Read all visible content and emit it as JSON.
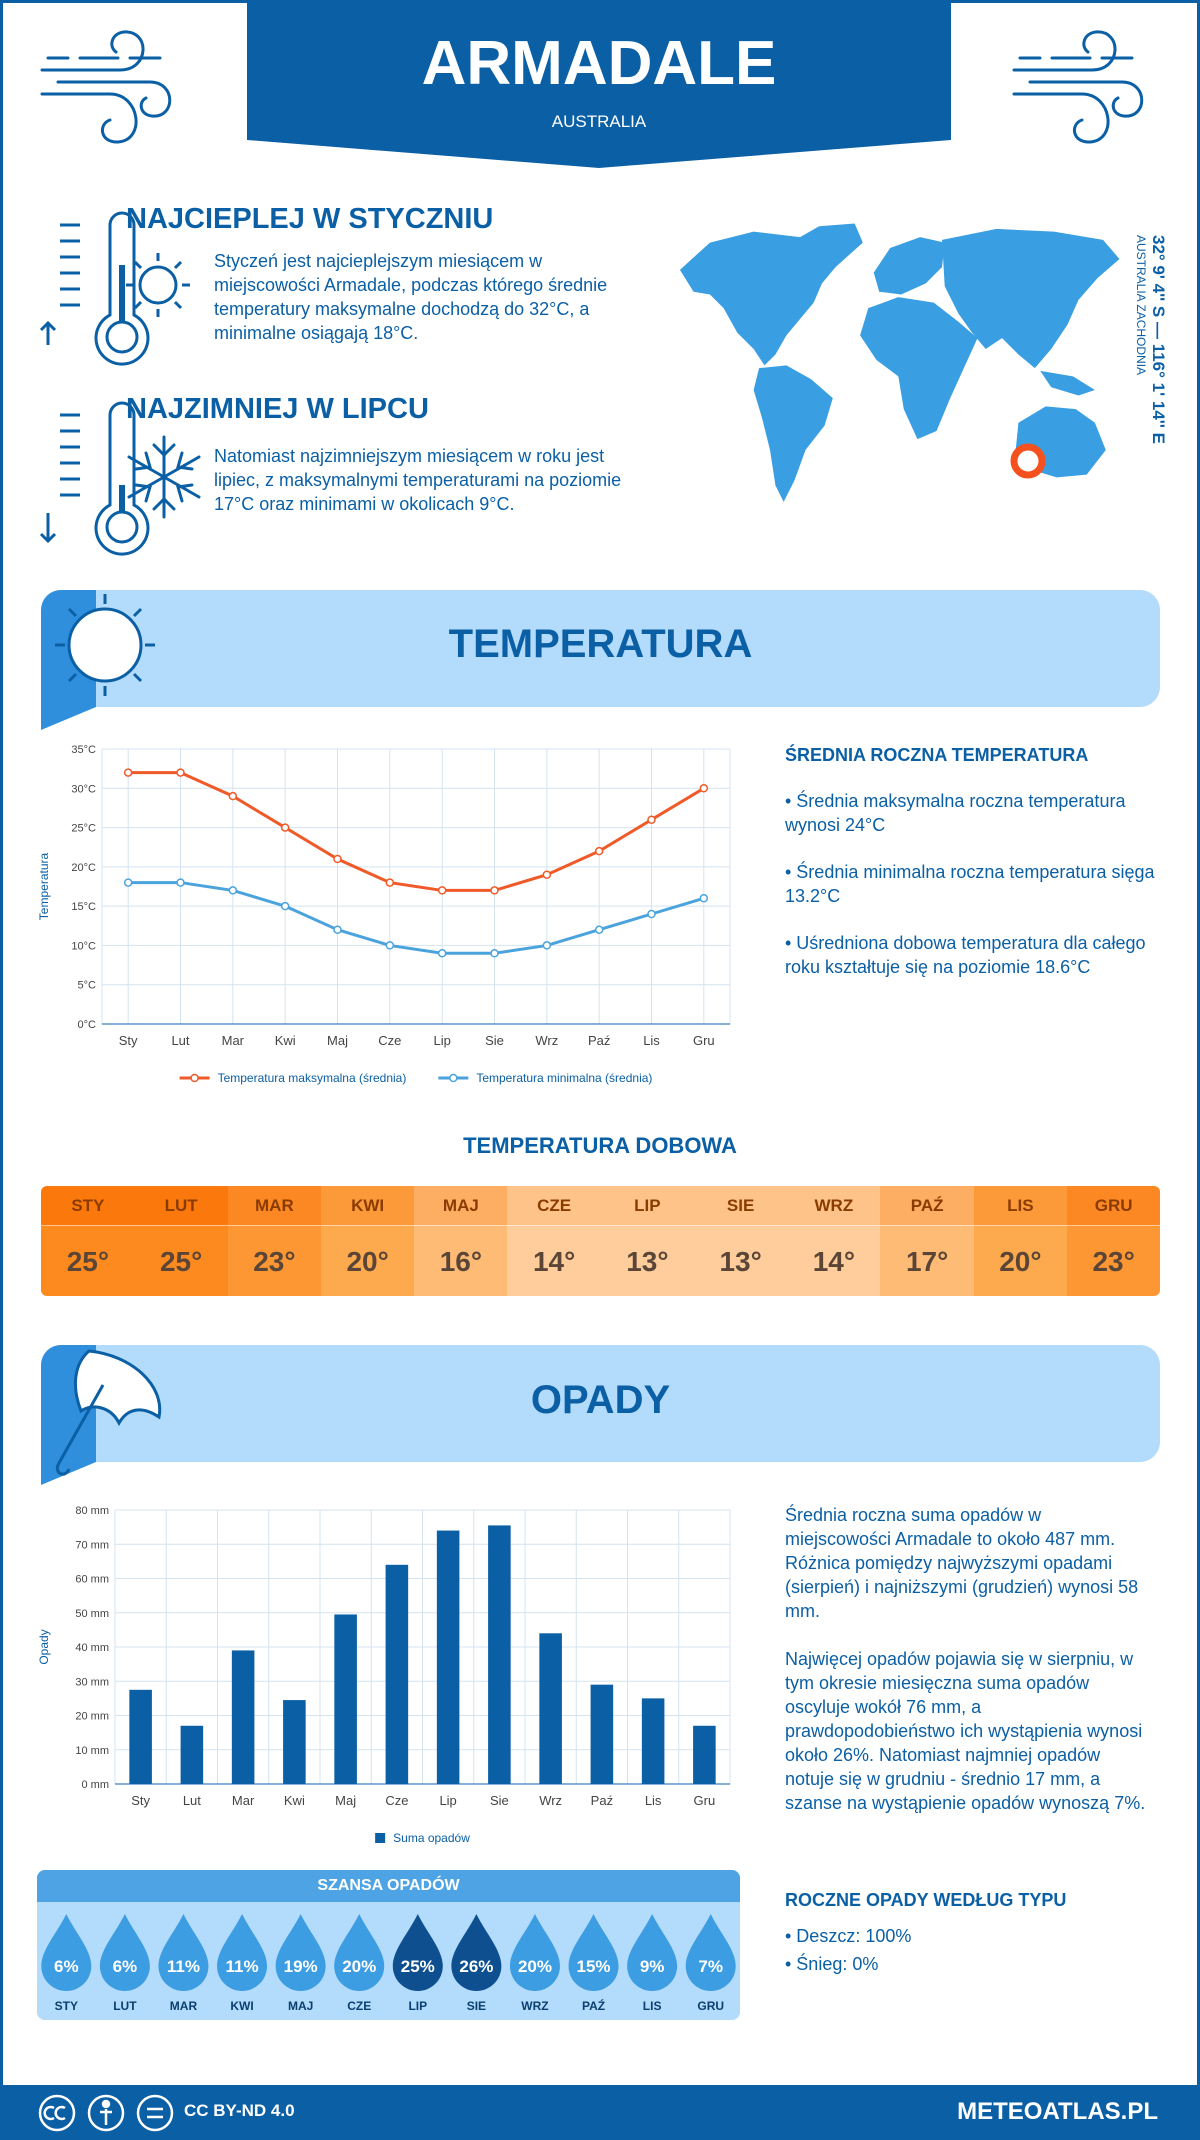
{
  "header": {
    "title": "ARMADALE",
    "subtitle": "AUSTRALIA"
  },
  "hottest": {
    "title": "NAJCIEPLEJ W STYCZNIU",
    "text": "Styczeń jest najcieplejszym miesiącem w miejscowości Armadale, podczas którego średnie temperatury maksymalne dochodzą do 32°C, a minimalne osiągają 18°C."
  },
  "coldest": {
    "title": "NAJZIMNIEJ W LIPCU",
    "text": "Natomiast najzimniejszym miesiącem w roku jest lipiec, z maksymalnymi temperaturami na poziomie 17°C oraz minimami w okolicach 9°C."
  },
  "location": {
    "coords": "32° 9' 4'' S — 116° 1' 14'' E",
    "region": "AUSTRALIA ZACHODNIA"
  },
  "temperature_section": {
    "title": "TEMPERATURA"
  },
  "temperature_summary": {
    "title": "ŚREDNIA ROCZNA TEMPERATURA",
    "items": [
      "• Średnia maksymalna roczna temperatura wynosi 24°C",
      "• Średnia minimalna roczna temperatura sięga 13.2°C",
      "• Uśredniona dobowa temperatura dla całego roku kształtuje się na poziomie 18.6°C"
    ]
  },
  "daily_temperature": {
    "title": "TEMPERATURA DOBOWA",
    "months": [
      "STY",
      "LUT",
      "MAR",
      "KWI",
      "MAJ",
      "CZE",
      "LIP",
      "SIE",
      "WRZ",
      "PAŹ",
      "LIS",
      "GRU"
    ],
    "temps": [
      "25°",
      "25°",
      "23°",
      "20°",
      "16°",
      "14°",
      "13°",
      "13°",
      "14°",
      "17°",
      "20°",
      "23°"
    ],
    "header_colors": [
      "#fb780c",
      "#fb780c",
      "#fb8822",
      "#fc9a3a",
      "#fdae62",
      "#fec389",
      "#fec389",
      "#fec389",
      "#fec389",
      "#fdae62",
      "#fc9a3a",
      "#fb8822"
    ],
    "cell_colors": [
      "#fd8a1e",
      "#fd8a1e",
      "#fd9734",
      "#fda94e",
      "#febb76",
      "#fecd9b",
      "#fecd9b",
      "#fecd9b",
      "#fecd9b",
      "#febb76",
      "#fda94e",
      "#fd9734"
    ]
  },
  "precip_section": {
    "title": "OPADY"
  },
  "precip_summary": {
    "paragraphs": [
      "Średnia roczna suma opadów w miejscowości Armadale to około 487 mm. Różnica pomiędzy najwyższymi opadami (sierpień) i najniższymi (grudzień) wynosi 58 mm.",
      "Najwięcej opadów pojawia się w sierpniu, w tym okresie miesięczna suma opadów oscyluje wokół 76 mm, a prawdopodobieństwo ich wystąpienia wynosi około 26%. Natomiast najmniej opadów notuje się w grudniu - średnio 17 mm, a szanse na wystąpienie opadów wynoszą 7%."
    ]
  },
  "rain_chance": {
    "title": "SZANSA OPADÓW",
    "months": [
      "STY",
      "LUT",
      "MAR",
      "KWI",
      "MAJ",
      "CZE",
      "LIP",
      "SIE",
      "WRZ",
      "PAŹ",
      "LIS",
      "GRU"
    ],
    "labels": [
      "6%",
      "6%",
      "11%",
      "11%",
      "19%",
      "20%",
      "25%",
      "26%",
      "20%",
      "15%",
      "9%",
      "7%"
    ],
    "colors": [
      "#3d9de2",
      "#3d9de2",
      "#3d9de2",
      "#3d9de2",
      "#3d9de2",
      "#3d9de2",
      "#0d4f8f",
      "#0d4f8f",
      "#3d9de2",
      "#3d9de2",
      "#3d9de2",
      "#3d9de2"
    ]
  },
  "precip_types": {
    "title": "ROCZNE OPADY WEDŁUG TYPU",
    "items": [
      "• Deszcz: 100%",
      "• Śnieg: 0%"
    ]
  },
  "footer": {
    "license": "CC BY-ND 4.0",
    "site": "METEOATLAS.PL"
  },
  "chart_data": [
    {
      "type": "line",
      "y_label": "Temperatura",
      "categories": [
        "Sty",
        "Lut",
        "Mar",
        "Kwi",
        "Maj",
        "Cze",
        "Lip",
        "Sie",
        "Wrz",
        "Paź",
        "Lis",
        "Gru"
      ],
      "series": [
        {
          "name": "Temperatura maksymalna (średnia)",
          "color": "#f05a28",
          "values": [
            32,
            32,
            29,
            25,
            21,
            18,
            17,
            17,
            19,
            22,
            26,
            30
          ]
        },
        {
          "name": "Temperatura minimalna (średnia)",
          "color": "#4ba3dd",
          "values": [
            18,
            18,
            17,
            15,
            12,
            10,
            9,
            9,
            10,
            12,
            14,
            16
          ]
        }
      ],
      "ylim": [
        0,
        35
      ],
      "yticks": [
        {
          "value": 0,
          "label": "0°C"
        },
        {
          "value": 5,
          "label": "5°C"
        },
        {
          "value": 10,
          "label": "10°C"
        },
        {
          "value": 15,
          "label": "15°C"
        },
        {
          "value": 20,
          "label": "20°C"
        },
        {
          "value": 25,
          "label": "25°C"
        },
        {
          "value": 30,
          "label": "30°C"
        },
        {
          "value": 35,
          "label": "35°C"
        }
      ],
      "grid": true
    },
    {
      "type": "bar",
      "y_label": "Opady",
      "categories": [
        "Sty",
        "Lut",
        "Mar",
        "Kwi",
        "Maj",
        "Cze",
        "Lip",
        "Sie",
        "Wrz",
        "Paź",
        "Lis",
        "Gru"
      ],
      "series": [
        {
          "name": "Suma opadów",
          "color": "#0b5fa5",
          "values": [
            27.5,
            17,
            39,
            24.5,
            49.5,
            64,
            74,
            75.5,
            44,
            29,
            25,
            17
          ]
        }
      ],
      "ylim": [
        0,
        80
      ],
      "yticks": [
        {
          "value": 0,
          "label": "0 mm"
        },
        {
          "value": 10,
          "label": "10 mm"
        },
        {
          "value": 20,
          "label": "20 mm"
        },
        {
          "value": 30,
          "label": "30 mm"
        },
        {
          "value": 40,
          "label": "40 mm"
        },
        {
          "value": 50,
          "label": "50 mm"
        },
        {
          "value": 60,
          "label": "60 mm"
        },
        {
          "value": 70,
          "label": "70 mm"
        },
        {
          "value": 80,
          "label": "80 mm"
        }
      ],
      "grid": true
    }
  ]
}
